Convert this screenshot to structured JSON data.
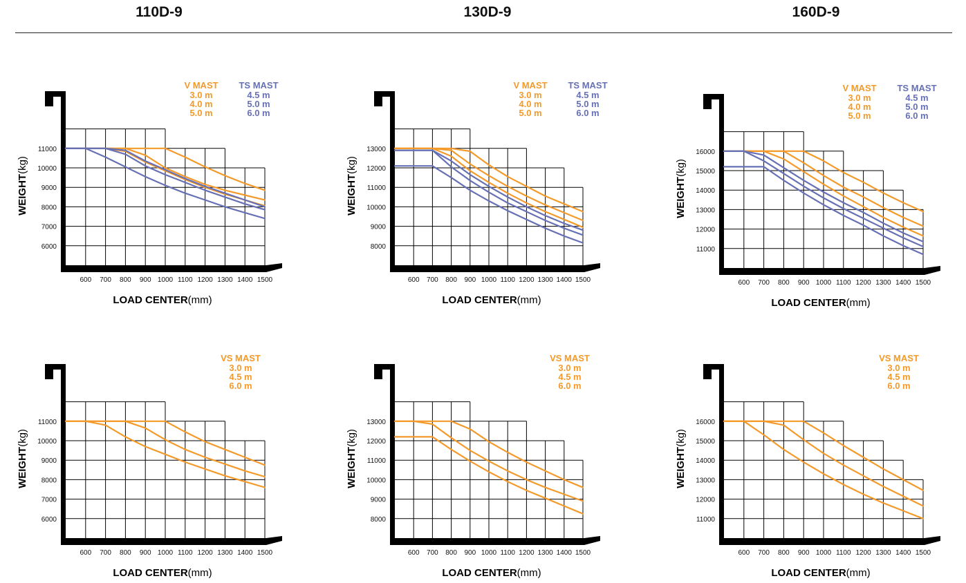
{
  "headers": [
    "110D-9",
    "130D-9",
    "160D-9"
  ],
  "colors": {
    "v_mast": "#f39a2b",
    "ts_mast": "#6670b4",
    "frame": "#000000",
    "grid": "#000000"
  },
  "chart_data": [
    {
      "type": "line",
      "model": "110D-9",
      "mast_group": "V / TS",
      "x": [
        500,
        600,
        700,
        800,
        900,
        1000,
        1100,
        1200,
        1300,
        1400,
        1500
      ],
      "x_ticks": [
        "600",
        "700",
        "800",
        "900",
        "1000",
        "1100",
        "1200",
        "1300",
        "1400",
        "1500"
      ],
      "y_ticks": [
        "6000",
        "7000",
        "8000",
        "9000",
        "10000",
        "11000"
      ],
      "ylim": [
        5000,
        12000
      ],
      "grid_tops": [
        12000,
        12000,
        12000,
        12000,
        12000,
        11000,
        11000,
        11000,
        10000,
        10000
      ],
      "xlabel_bold": "LOAD CENTER",
      "xlabel_unit": "(mm)",
      "ylabel_bold": "WEIGHT",
      "ylabel_unit": "(kg)",
      "legend": [
        {
          "title": "V  MAST",
          "color": "#f39a2b",
          "items": [
            "3.0 m",
            "4.0 m",
            "5.0 m"
          ]
        },
        {
          "title": "TS  MAST",
          "color": "#6670b4",
          "items": [
            "4.5 m",
            "5.0 m",
            "6.0 m"
          ]
        }
      ],
      "series": [
        {
          "color": "#f39a2b",
          "values": [
            11000,
            11000,
            11000,
            11000,
            11000,
            11000,
            10550,
            10050,
            9600,
            9200,
            8850
          ]
        },
        {
          "color": "#f39a2b",
          "values": [
            11000,
            11000,
            11000,
            11000,
            10650,
            10000,
            9550,
            9150,
            8850,
            8600,
            8350
          ]
        },
        {
          "color": "#f39a2b",
          "values": [
            11000,
            11000,
            11000,
            10850,
            10300,
            9850,
            9400,
            9000,
            8650,
            8350,
            8050
          ]
        },
        {
          "color": "#6670b4",
          "values": [
            11000,
            11000,
            11000,
            10900,
            10350,
            9900,
            9450,
            9050,
            8700,
            8350,
            8000
          ]
        },
        {
          "color": "#6670b4",
          "values": [
            11000,
            11000,
            11000,
            10700,
            10100,
            9650,
            9250,
            8850,
            8500,
            8150,
            7850
          ]
        },
        {
          "color": "#6670b4",
          "values": [
            11000,
            11000,
            10550,
            10050,
            9550,
            9100,
            8700,
            8350,
            8000,
            7700,
            7400
          ]
        }
      ]
    },
    {
      "type": "line",
      "model": "130D-9",
      "mast_group": "V / TS",
      "x": [
        500,
        600,
        700,
        800,
        900,
        1000,
        1100,
        1200,
        1300,
        1400,
        1500
      ],
      "x_ticks": [
        "600",
        "700",
        "800",
        "900",
        "1000",
        "1100",
        "1200",
        "1300",
        "1400",
        "1500"
      ],
      "y_ticks": [
        "8000",
        "9000",
        "10000",
        "11000",
        "12000",
        "13000"
      ],
      "ylim": [
        7000,
        14000
      ],
      "grid_tops": [
        14000,
        14000,
        14000,
        14000,
        13000,
        13000,
        13000,
        12000,
        12000,
        11000
      ],
      "xlabel_bold": "LOAD CENTER",
      "xlabel_unit": "(mm)",
      "ylabel_bold": "WEIGHT",
      "ylabel_unit": "(kg)",
      "legend": [
        {
          "title": "V  MAST",
          "color": "#f39a2b",
          "items": [
            "3.0 m",
            "4.0 m",
            "5.0 m"
          ]
        },
        {
          "title": "TS  MAST",
          "color": "#6670b4",
          "items": [
            "4.5 m",
            "5.0 m",
            "6.0 m"
          ]
        }
      ],
      "series": [
        {
          "color": "#f39a2b",
          "values": [
            13000,
            13000,
            13000,
            13000,
            12850,
            12150,
            11550,
            11050,
            10550,
            10150,
            9750
          ]
        },
        {
          "color": "#f39a2b",
          "values": [
            13000,
            13000,
            13000,
            12900,
            12200,
            11600,
            11050,
            10550,
            10100,
            9700,
            9300
          ]
        },
        {
          "color": "#f39a2b",
          "values": [
            13000,
            13000,
            13000,
            12600,
            11850,
            11250,
            10700,
            10200,
            9750,
            9350,
            8950
          ]
        },
        {
          "color": "#6670b4",
          "values": [
            12900,
            12900,
            12900,
            12350,
            11650,
            11050,
            10500,
            10000,
            9550,
            9150,
            8800
          ]
        },
        {
          "color": "#6670b4",
          "values": [
            12900,
            12900,
            12900,
            12050,
            11350,
            10750,
            10200,
            9750,
            9300,
            8900,
            8550
          ]
        },
        {
          "color": "#6670b4",
          "values": [
            12100,
            12100,
            12100,
            11500,
            10850,
            10300,
            9800,
            9350,
            8900,
            8500,
            8150
          ]
        }
      ]
    },
    {
      "type": "line",
      "model": "160D-9",
      "mast_group": "V / TS",
      "x": [
        500,
        600,
        700,
        800,
        900,
        1000,
        1100,
        1200,
        1300,
        1400,
        1500
      ],
      "x_ticks": [
        "600",
        "700",
        "800",
        "900",
        "1000",
        "1100",
        "1200",
        "1300",
        "1400",
        "1500"
      ],
      "y_ticks": [
        "11000",
        "12000",
        "13000",
        "14000",
        "15000",
        "16000"
      ],
      "ylim": [
        10000,
        17000
      ],
      "grid_tops": [
        17000,
        17000,
        17000,
        17000,
        16000,
        16000,
        15000,
        15000,
        14000,
        13000
      ],
      "xlabel_bold": "LOAD CENTER",
      "xlabel_unit": "(mm)",
      "ylabel_bold": "WEIGHT",
      "ylabel_unit": "(kg)",
      "legend": [
        {
          "title": "V  MAST",
          "color": "#f39a2b",
          "items": [
            "3.0 m",
            "4.0 m",
            "5.0 m"
          ]
        },
        {
          "title": "TS  MAST",
          "color": "#6670b4",
          "items": [
            "4.5 m",
            "5.0 m",
            "6.0 m"
          ]
        }
      ],
      "series": [
        {
          "color": "#f39a2b",
          "values": [
            16000,
            16000,
            16000,
            16000,
            16000,
            15500,
            14900,
            14400,
            13850,
            13350,
            12900
          ]
        },
        {
          "color": "#f39a2b",
          "values": [
            16000,
            16000,
            16000,
            16000,
            15400,
            14750,
            14150,
            13650,
            13100,
            12600,
            12150
          ]
        },
        {
          "color": "#f39a2b",
          "values": [
            16000,
            16000,
            16000,
            15600,
            14950,
            14300,
            13700,
            13150,
            12600,
            12100,
            11650
          ]
        },
        {
          "color": "#6670b4",
          "values": [
            16000,
            16000,
            15800,
            15150,
            14500,
            13900,
            13350,
            12850,
            12300,
            11800,
            11350
          ]
        },
        {
          "color": "#6670b4",
          "values": [
            16000,
            16000,
            15500,
            14850,
            14200,
            13600,
            13050,
            12550,
            12050,
            11550,
            11100
          ]
        },
        {
          "color": "#6670b4",
          "values": [
            15200,
            15200,
            15200,
            14500,
            13850,
            13250,
            12700,
            12200,
            11650,
            11150,
            10700
          ]
        }
      ]
    },
    {
      "type": "line",
      "model": "110D-9",
      "mast_group": "VS",
      "x": [
        500,
        600,
        700,
        800,
        900,
        1000,
        1100,
        1200,
        1300,
        1400,
        1500
      ],
      "x_ticks": [
        "600",
        "700",
        "800",
        "900",
        "1000",
        "1100",
        "1200",
        "1300",
        "1400",
        "1500"
      ],
      "y_ticks": [
        "6000",
        "7000",
        "8000",
        "9000",
        "10000",
        "11000"
      ],
      "ylim": [
        5000,
        12000
      ],
      "grid_tops": [
        12000,
        12000,
        12000,
        12000,
        12000,
        11000,
        11000,
        11000,
        10000,
        10000
      ],
      "xlabel_bold": "LOAD CENTER",
      "xlabel_unit": "(mm)",
      "ylabel_bold": "WEIGHT",
      "ylabel_unit": "(kg)",
      "legend": [
        {
          "title": "VS  MAST",
          "color": "#f39a2b",
          "items": [
            "3.0 m",
            "4.5 m",
            "6.0 m"
          ]
        }
      ],
      "series": [
        {
          "color": "#f39a2b",
          "values": [
            11000,
            11000,
            11000,
            11000,
            11000,
            11000,
            10450,
            9950,
            9550,
            9150,
            8750
          ]
        },
        {
          "color": "#f39a2b",
          "values": [
            11000,
            11000,
            11000,
            11000,
            10650,
            10050,
            9550,
            9150,
            8800,
            8450,
            8150
          ]
        },
        {
          "color": "#f39a2b",
          "values": [
            11000,
            11000,
            10800,
            10200,
            9700,
            9300,
            8900,
            8550,
            8200,
            7900,
            7600
          ]
        }
      ]
    },
    {
      "type": "line",
      "model": "130D-9",
      "mast_group": "VS",
      "x": [
        500,
        600,
        700,
        800,
        900,
        1000,
        1100,
        1200,
        1300,
        1400,
        1500
      ],
      "x_ticks": [
        "600",
        "700",
        "800",
        "900",
        "1000",
        "1100",
        "1200",
        "1300",
        "1400",
        "1500"
      ],
      "y_ticks": [
        "8000",
        "9000",
        "10000",
        "11000",
        "12000",
        "13000"
      ],
      "ylim": [
        7000,
        14000
      ],
      "grid_tops": [
        14000,
        14000,
        14000,
        14000,
        13000,
        13000,
        13000,
        12000,
        12000,
        11000
      ],
      "xlabel_bold": "LOAD CENTER",
      "xlabel_unit": "(mm)",
      "ylabel_bold": "WEIGHT",
      "ylabel_unit": "(kg)",
      "legend": [
        {
          "title": "VS  MAST",
          "color": "#f39a2b",
          "items": [
            "3.0 m",
            "4.5 m",
            "6.0 m"
          ]
        }
      ],
      "series": [
        {
          "color": "#f39a2b",
          "values": [
            13000,
            13000,
            13000,
            13000,
            12600,
            11950,
            11400,
            10900,
            10450,
            10000,
            9600
          ]
        },
        {
          "color": "#f39a2b",
          "values": [
            13000,
            13000,
            12850,
            12150,
            11500,
            10950,
            10450,
            10000,
            9600,
            9250,
            8900
          ]
        },
        {
          "color": "#f39a2b",
          "values": [
            12200,
            12200,
            12200,
            11550,
            10950,
            10400,
            9900,
            9450,
            9050,
            8650,
            8250
          ]
        }
      ]
    },
    {
      "type": "line",
      "model": "160D-9",
      "mast_group": "VS",
      "x": [
        500,
        600,
        700,
        800,
        900,
        1000,
        1100,
        1200,
        1300,
        1400,
        1500
      ],
      "x_ticks": [
        "600",
        "700",
        "800",
        "900",
        "1000",
        "1100",
        "1200",
        "1300",
        "1400",
        "1500"
      ],
      "y_ticks": [
        "11000",
        "12000",
        "13000",
        "14000",
        "15000",
        "16000"
      ],
      "ylim": [
        10000,
        17000
      ],
      "grid_tops": [
        17000,
        17000,
        17000,
        17000,
        16000,
        16000,
        15000,
        15000,
        14000,
        13000
      ],
      "xlabel_bold": "LOAD CENTER",
      "xlabel_unit": "(mm)",
      "ylabel_bold": "WEIGHT",
      "ylabel_unit": "(kg)",
      "legend": [
        {
          "title": "VS  MAST",
          "color": "#f39a2b",
          "items": [
            "3.0 m",
            "4.5 m",
            "6.0 m"
          ]
        }
      ],
      "series": [
        {
          "color": "#f39a2b",
          "values": [
            16000,
            16000,
            16000,
            16000,
            16000,
            15400,
            14750,
            14150,
            13550,
            13000,
            12450
          ]
        },
        {
          "color": "#f39a2b",
          "values": [
            16000,
            16000,
            16000,
            15800,
            15050,
            14350,
            13750,
            13200,
            12650,
            12150,
            11650
          ]
        },
        {
          "color": "#f39a2b",
          "values": [
            16000,
            16000,
            15300,
            14550,
            13900,
            13300,
            12750,
            12250,
            11800,
            11400,
            11000
          ]
        }
      ]
    }
  ]
}
